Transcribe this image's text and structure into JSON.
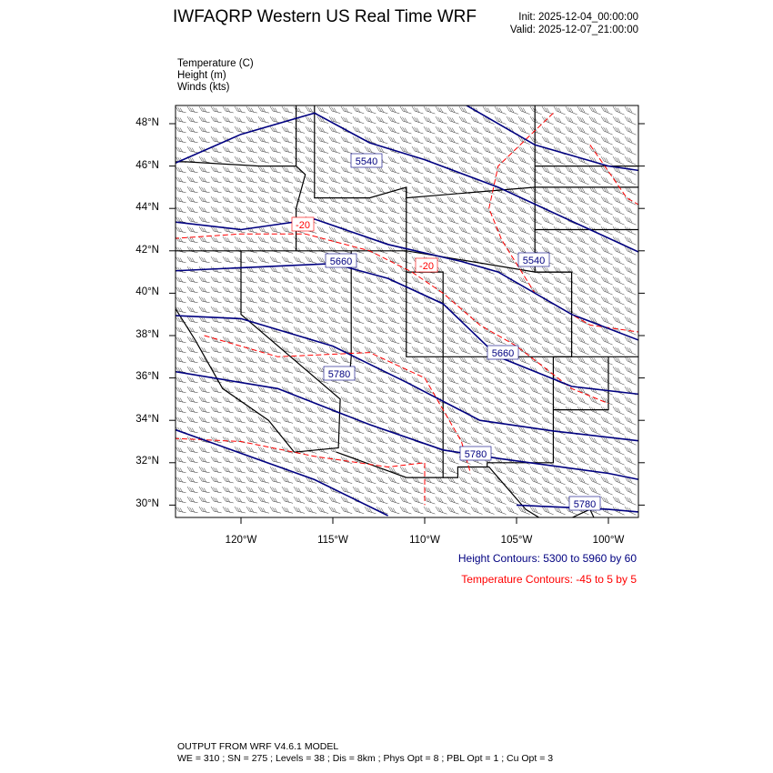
{
  "header": {
    "title": "IWFAQRP Western US Real Time WRF",
    "init": "Init: 2025-12-04_00:00:00",
    "valid": "Valid: 2025-12-07_21:00:00"
  },
  "fields": [
    "Temperature   (C)",
    "Height   (m)",
    "Winds   (kts)"
  ],
  "map": {
    "lat_ticks": [
      "48°N",
      "46°N",
      "44°N",
      "42°N",
      "40°N",
      "38°N",
      "36°N",
      "34°N",
      "32°N",
      "30°N"
    ],
    "lon_ticks": [
      "120°W",
      "115°W",
      "110°W",
      "105°W",
      "100°W"
    ],
    "height_labels": [
      "5540",
      "5660",
      "5540",
      "5660",
      "5780",
      "5780",
      "5780"
    ],
    "temp_labels": [
      "-20",
      "-20"
    ],
    "colors": {
      "height": "#000080",
      "temperature": "#ff0000",
      "borders": "#000000",
      "barbs": "#333333"
    }
  },
  "legend": {
    "height_contours": "Height Contours: 5300 to 5960 by 60",
    "temperature_contours": "Temperature Contours: -45 to 5 by 5"
  },
  "footer": {
    "line1": "OUTPUT FROM WRF V4.6.1 MODEL",
    "line2": "WE = 310 ; SN = 275 ; Levels = 38 ; Dis = 8km ; Phys Opt = 8 ; PBL Opt = 1 ; Cu Opt = 3"
  }
}
